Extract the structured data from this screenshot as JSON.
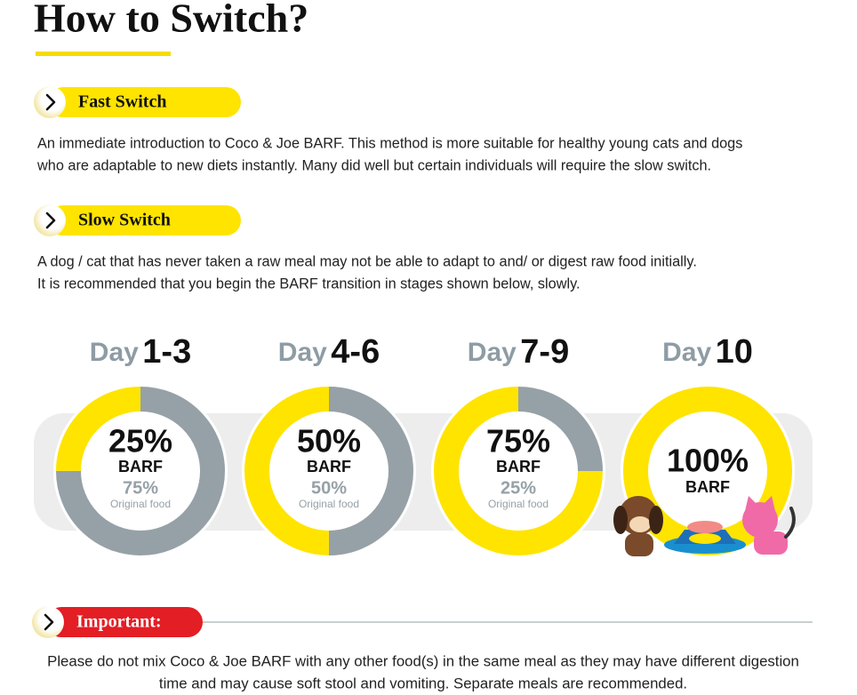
{
  "header": {
    "title": "How to Switch?"
  },
  "fast_switch": {
    "label": "Fast Switch",
    "lines": [
      "An immediate introduction to Coco & Joe BARF. This method is more suitable for healthy young cats and dogs",
      "who are adaptable to new diets instantly. Many did well but certain individuals will require the slow switch."
    ]
  },
  "slow_switch": {
    "label": "Slow Switch",
    "lines": [
      "A dog / cat that has never taken a raw meal may not be able to adapt to and/ or digest raw food initially.",
      "It is recommended that you begin the BARF transition in stages shown below, slowly."
    ]
  },
  "stages": [
    {
      "day": "Day",
      "days": "1-3",
      "barf": 25,
      "barf_label": "25%",
      "barf_text": "BARF",
      "original": 75,
      "original_label": "75%",
      "original_text": "Original food"
    },
    {
      "day": "Day",
      "days": "4-6",
      "barf": 50,
      "barf_label": "50%",
      "barf_text": "BARF",
      "original": 50,
      "original_label": "50%",
      "original_text": "Original food"
    },
    {
      "day": "Day",
      "days": "7-9",
      "barf": 75,
      "barf_label": "75%",
      "barf_text": "BARF",
      "original": 25,
      "original_label": "25%",
      "original_text": "Original food"
    },
    {
      "day": "Day",
      "days": "10",
      "barf": 100,
      "barf_label": "100%",
      "barf_text": "BARF"
    }
  ],
  "important": {
    "label": "Important:",
    "lines": [
      "Please do not mix Coco & Joe BARF with any other food(s) in the same meal as they may have different digestion",
      "time and may cause soft stool and vomiting. Separate meals are recommended."
    ]
  }
}
